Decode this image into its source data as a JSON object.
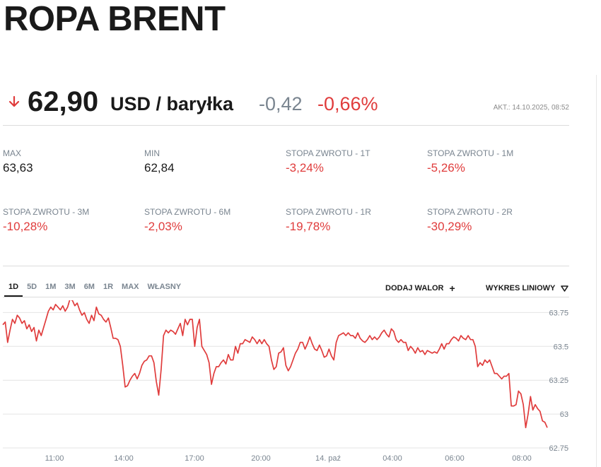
{
  "header": {
    "title": "ROPA BRENT"
  },
  "quote": {
    "direction_icon": "arrow-down-icon",
    "price": "62,90",
    "unit": "USD / baryłka",
    "change_abs": "-0,42",
    "change_pct": "-0,66%",
    "updated": "AKT.: 14.10.2025, 08:52"
  },
  "stats": [
    {
      "label": "MAX",
      "value": "63,63",
      "negative": false
    },
    {
      "label": "MIN",
      "value": "62,84",
      "negative": false
    },
    {
      "label": "STOPA ZWROTU - 1T",
      "value": "-3,24%",
      "negative": true
    },
    {
      "label": "STOPA ZWROTU - 1M",
      "value": "-5,26%",
      "negative": true
    },
    {
      "label": "STOPA ZWROTU - 3M",
      "value": "-10,28%",
      "negative": true
    },
    {
      "label": "STOPA ZWROTU - 6M",
      "value": "-2,03%",
      "negative": true
    },
    {
      "label": "STOPA ZWROTU - 1R",
      "value": "-19,78%",
      "negative": true
    },
    {
      "label": "STOPA ZWROTU - 2R",
      "value": "-30,29%",
      "negative": true
    }
  ],
  "toolbar": {
    "range_tabs": [
      "1D",
      "5D",
      "1M",
      "3M",
      "6M",
      "1R",
      "MAX",
      "WŁASNY"
    ],
    "active_tab": "1D",
    "add_asset_label": "DODAJ WALOR",
    "add_asset_icon": "plus-icon",
    "chart_type_label": "WYKRES LINIOWY",
    "chart_type_icon": "triangle-down-icon"
  },
  "colors": {
    "negative": "#e03c3c",
    "line": "#e03c3c",
    "muted": "#7a8590"
  },
  "chart_data": {
    "type": "line",
    "x_tick_labels": [
      "11:00",
      "14:00",
      "17:00",
      "20:00",
      "14. paź",
      "04:00",
      "06:00",
      "08:00"
    ],
    "y_ticks": [
      62.75,
      63,
      63.25,
      63.5,
      63.75
    ],
    "y_tick_labels": [
      "62.75",
      "63",
      "63.25",
      "63.5",
      "63.75"
    ],
    "ylim": [
      62.75,
      63.82
    ],
    "grid": true,
    "series": [
      {
        "values": [
          63.66,
          63.68,
          63.53,
          63.62,
          63.7,
          63.67,
          63.73,
          63.71,
          63.67,
          63.69,
          63.63,
          63.66,
          63.61,
          63.64,
          63.54,
          63.62,
          63.58,
          63.64,
          63.7,
          63.76,
          63.79,
          63.77,
          63.81,
          63.79,
          63.77,
          63.8,
          63.76,
          63.79,
          63.85,
          63.84,
          63.8,
          63.82,
          63.77,
          63.73,
          63.75,
          63.7,
          63.67,
          63.73,
          63.69,
          63.79,
          63.74,
          63.73,
          63.7,
          63.68,
          63.71,
          63.64,
          63.56,
          63.56,
          63.55,
          63.5,
          63.36,
          63.2,
          63.21,
          63.25,
          63.28,
          63.3,
          63.26,
          63.3,
          63.36,
          63.39,
          63.4,
          63.43,
          63.43,
          63.38,
          63.24,
          63.14,
          63.33,
          63.58,
          63.62,
          63.6,
          63.62,
          63.61,
          63.59,
          63.63,
          63.67,
          63.58,
          63.7,
          63.66,
          63.7,
          63.7,
          63.5,
          63.64,
          63.7,
          63.5,
          63.47,
          63.44,
          63.38,
          63.22,
          63.3,
          63.35,
          63.35,
          63.38,
          63.4,
          63.37,
          63.44,
          63.4,
          63.4,
          63.5,
          63.45,
          63.52,
          63.52,
          63.55,
          63.54,
          63.53,
          63.57,
          63.55,
          63.52,
          63.55,
          63.52,
          63.55,
          63.52,
          63.5,
          63.4,
          63.33,
          63.35,
          63.45,
          63.46,
          63.49,
          63.36,
          63.32,
          63.35,
          63.4,
          63.45,
          63.48,
          63.53,
          63.53,
          63.48,
          63.52,
          63.57,
          63.52,
          63.48,
          63.47,
          63.51,
          63.47,
          63.42,
          63.43,
          63.48,
          63.43,
          63.4,
          63.53,
          63.58,
          63.59,
          63.6,
          63.58,
          63.6,
          63.58,
          63.58,
          63.56,
          63.6,
          63.56,
          63.54,
          63.53,
          63.55,
          63.58,
          63.55,
          63.57,
          63.55,
          63.57,
          63.6,
          63.62,
          63.59,
          63.57,
          63.63,
          63.61,
          63.55,
          63.53,
          63.55,
          63.53,
          63.53,
          63.47,
          63.5,
          63.48,
          63.45,
          63.49,
          63.46,
          63.47,
          63.44,
          63.47,
          63.46,
          63.45,
          63.46,
          63.45,
          63.48,
          63.52,
          63.48,
          63.52,
          63.52,
          63.55,
          63.57,
          63.56,
          63.54,
          63.58,
          63.56,
          63.55,
          63.58,
          63.55,
          63.55,
          63.5,
          63.35,
          63.38,
          63.36,
          63.4,
          63.38,
          63.4,
          63.35,
          63.3,
          63.3,
          63.28,
          63.26,
          63.28,
          63.28,
          63.3,
          63.06,
          63.06,
          63.07,
          63.17,
          63.15,
          63.07,
          62.9,
          63.0,
          63.13,
          63.03,
          63.07,
          63.04,
          63.02,
          62.95,
          62.94,
          62.9
        ]
      }
    ]
  }
}
